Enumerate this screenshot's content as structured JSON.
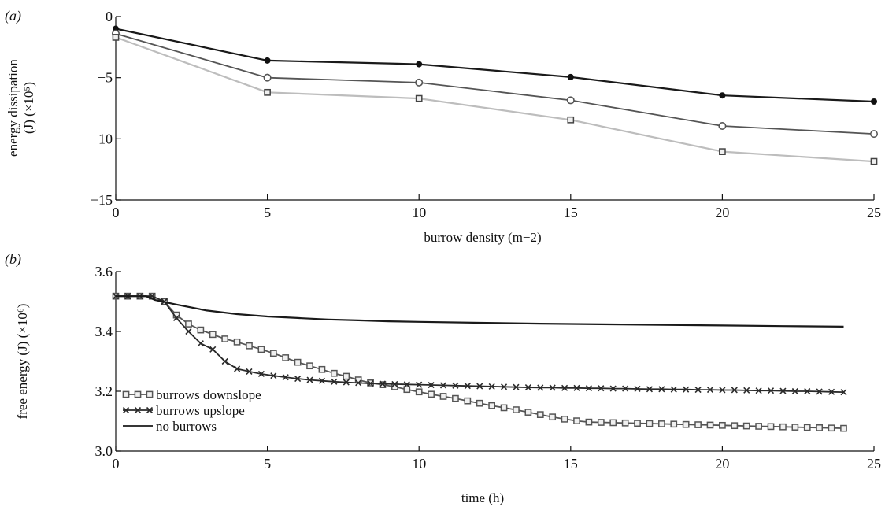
{
  "chart_data": [
    {
      "panel": "a",
      "panel_label": "(a)",
      "type": "line",
      "xlabel": "burrow density (m−2)",
      "ylabel": [
        "energy dissipation",
        "(J) (×10⁵)"
      ],
      "x": [
        0,
        5,
        10,
        15,
        20,
        25
      ],
      "xlim": [
        0,
        25
      ],
      "ylim": [
        -15,
        0
      ],
      "xticks": [
        "0",
        "5",
        "10",
        "15",
        "20",
        "25"
      ],
      "yticks": [
        "0",
        "−5",
        "−10",
        "−15"
      ],
      "ytick_values": [
        0,
        -5,
        -10,
        -15
      ],
      "series": [
        {
          "values": [
            -1.0,
            -3.6,
            -3.9,
            -4.95,
            -6.45,
            -6.95
          ],
          "color": "#1a1a1a",
          "marker": "dot"
        },
        {
          "values": [
            -1.4,
            -5.0,
            -5.4,
            -6.85,
            -8.95,
            -9.6
          ],
          "color": "#555555",
          "marker": "circle"
        },
        {
          "values": [
            -1.7,
            -6.2,
            -6.7,
            -8.45,
            -11.05,
            -11.85
          ],
          "color": "#bdbdbd",
          "marker": "square"
        }
      ]
    },
    {
      "panel": "b",
      "panel_label": "(b)",
      "type": "line",
      "xlabel": "time (h)",
      "ylabel": [
        "free energy (J) (×10⁶)"
      ],
      "xlim": [
        0,
        25
      ],
      "ylim": [
        3.0,
        3.6
      ],
      "xticks": [
        "0",
        "5",
        "10",
        "15",
        "20",
        "25"
      ],
      "yticks": [
        "3.6",
        "3.4",
        "3.2",
        "3.0"
      ],
      "ytick_values": [
        3.6,
        3.4,
        3.2,
        3.0
      ],
      "legend": {
        "placement": "lower-left"
      },
      "series": [
        {
          "name": "burrows downslope",
          "marker": "square",
          "color": "#555555",
          "x": [
            0,
            0.4,
            0.8,
            1.2,
            1.6,
            2.0,
            2.4,
            2.8,
            3.2,
            3.6,
            4.0,
            4.4,
            4.8,
            5.2,
            5.6,
            6.0,
            6.4,
            6.8,
            7.2,
            7.6,
            8.0,
            8.4,
            8.8,
            9.2,
            9.6,
            10.0,
            10.4,
            10.8,
            11.2,
            11.6,
            12.0,
            12.4,
            12.8,
            13.2,
            13.6,
            14.0,
            14.4,
            14.8,
            15.2,
            15.6,
            16.0,
            16.4,
            16.8,
            17.2,
            17.6,
            18.0,
            18.4,
            18.8,
            19.2,
            19.6,
            20.0,
            20.4,
            20.8,
            21.2,
            21.6,
            22.0,
            22.4,
            22.8,
            23.2,
            23.6,
            24.0
          ],
          "values": [
            3.518,
            3.518,
            3.518,
            3.518,
            3.5,
            3.455,
            3.425,
            3.405,
            3.39,
            3.375,
            3.365,
            3.352,
            3.34,
            3.327,
            3.312,
            3.297,
            3.285,
            3.273,
            3.26,
            3.25,
            3.238,
            3.228,
            3.222,
            3.215,
            3.206,
            3.198,
            3.19,
            3.183,
            3.176,
            3.168,
            3.16,
            3.152,
            3.145,
            3.138,
            3.13,
            3.122,
            3.114,
            3.107,
            3.101,
            3.097,
            3.096,
            3.095,
            3.094,
            3.093,
            3.092,
            3.091,
            3.09,
            3.089,
            3.088,
            3.087,
            3.086,
            3.085,
            3.084,
            3.083,
            3.082,
            3.081,
            3.08,
            3.079,
            3.078,
            3.077,
            3.076
          ]
        },
        {
          "name": "burrows upslope",
          "marker": "x",
          "color": "#2a2a2a",
          "x": [
            0,
            0.4,
            0.8,
            1.2,
            1.6,
            2.0,
            2.4,
            2.8,
            3.2,
            3.6,
            4.0,
            4.4,
            4.8,
            5.2,
            5.6,
            6.0,
            6.4,
            6.8,
            7.2,
            7.6,
            8.0,
            8.4,
            8.8,
            9.2,
            9.6,
            10.0,
            10.4,
            10.8,
            11.2,
            11.6,
            12.0,
            12.4,
            12.8,
            13.2,
            13.6,
            14.0,
            14.4,
            14.8,
            15.2,
            15.6,
            16.0,
            16.4,
            16.8,
            17.2,
            17.6,
            18.0,
            18.4,
            18.8,
            19.2,
            19.6,
            20.0,
            20.4,
            20.8,
            21.2,
            21.6,
            22.0,
            22.4,
            22.8,
            23.2,
            23.6,
            24.0
          ],
          "values": [
            3.518,
            3.518,
            3.518,
            3.518,
            3.5,
            3.445,
            3.4,
            3.36,
            3.34,
            3.3,
            3.275,
            3.266,
            3.258,
            3.252,
            3.247,
            3.242,
            3.238,
            3.235,
            3.232,
            3.23,
            3.228,
            3.226,
            3.225,
            3.224,
            3.223,
            3.222,
            3.221,
            3.22,
            3.219,
            3.218,
            3.217,
            3.216,
            3.215,
            3.214,
            3.213,
            3.212,
            3.212,
            3.211,
            3.211,
            3.21,
            3.21,
            3.209,
            3.209,
            3.208,
            3.207,
            3.207,
            3.206,
            3.206,
            3.205,
            3.205,
            3.204,
            3.204,
            3.203,
            3.202,
            3.202,
            3.201,
            3.2,
            3.2,
            3.199,
            3.198,
            3.197
          ]
        },
        {
          "name": "no burrows",
          "marker": "none",
          "color": "#1a1a1a",
          "x": [
            0,
            1,
            1.3,
            2,
            3,
            4,
            5,
            6,
            7,
            8,
            9,
            10,
            12,
            14,
            16,
            18,
            20,
            22,
            24
          ],
          "values": [
            3.518,
            3.518,
            3.505,
            3.49,
            3.47,
            3.458,
            3.45,
            3.445,
            3.44,
            3.437,
            3.434,
            3.432,
            3.429,
            3.426,
            3.424,
            3.422,
            3.42,
            3.418,
            3.416
          ]
        }
      ]
    }
  ]
}
